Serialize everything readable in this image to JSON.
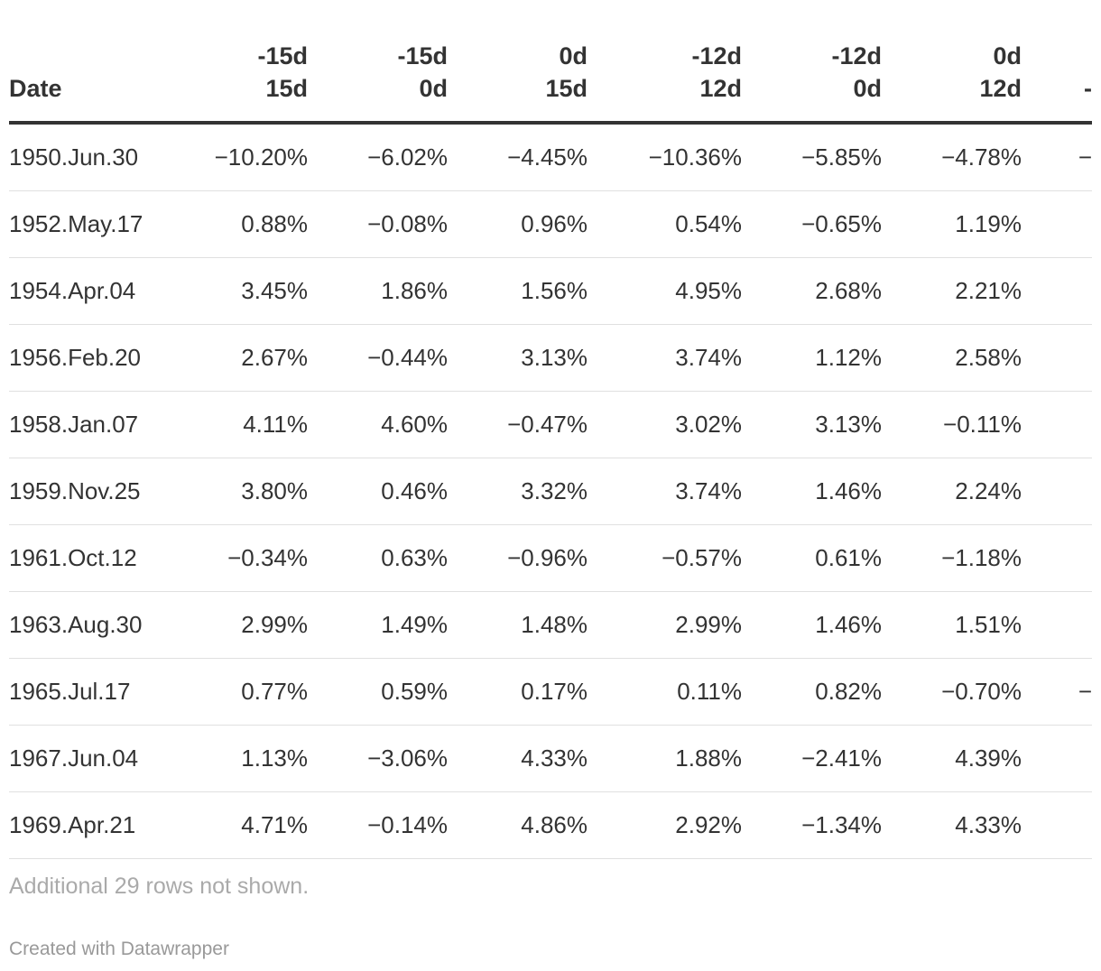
{
  "table": {
    "headers": [
      {
        "top": "",
        "bottom": "Date"
      },
      {
        "top": "-15d",
        "bottom": "15d"
      },
      {
        "top": "-15d",
        "bottom": "0d"
      },
      {
        "top": "0d",
        "bottom": "15d"
      },
      {
        "top": "-12d",
        "bottom": "12d"
      },
      {
        "top": "-12d",
        "bottom": "0d"
      },
      {
        "top": "0d",
        "bottom": "12d"
      },
      {
        "top": "",
        "bottom": "-"
      }
    ],
    "rows": [
      [
        "1950.Jun.30",
        "−10.20%",
        "−6.02%",
        "−4.45%",
        "−10.36%",
        "−5.85%",
        "−4.78%",
        "−"
      ],
      [
        "1952.May.17",
        "0.88%",
        "−0.08%",
        "0.96%",
        "0.54%",
        "−0.65%",
        "1.19%",
        ""
      ],
      [
        "1954.Apr.04",
        "3.45%",
        "1.86%",
        "1.56%",
        "4.95%",
        "2.68%",
        "2.21%",
        ""
      ],
      [
        "1956.Feb.20",
        "2.67%",
        "−0.44%",
        "3.13%",
        "3.74%",
        "1.12%",
        "2.58%",
        ""
      ],
      [
        "1958.Jan.07",
        "4.11%",
        "4.60%",
        "−0.47%",
        "3.02%",
        "3.13%",
        "−0.11%",
        ""
      ],
      [
        "1959.Nov.25",
        "3.80%",
        "0.46%",
        "3.32%",
        "3.74%",
        "1.46%",
        "2.24%",
        ""
      ],
      [
        "1961.Oct.12",
        "−0.34%",
        "0.63%",
        "−0.96%",
        "−0.57%",
        "0.61%",
        "−1.18%",
        ""
      ],
      [
        "1963.Aug.30",
        "2.99%",
        "1.49%",
        "1.48%",
        "2.99%",
        "1.46%",
        "1.51%",
        ""
      ],
      [
        "1965.Jul.17",
        "0.77%",
        "0.59%",
        "0.17%",
        "0.11%",
        "0.82%",
        "−0.70%",
        "−"
      ],
      [
        "1967.Jun.04",
        "1.13%",
        "−3.06%",
        "4.33%",
        "1.88%",
        "−2.41%",
        "4.39%",
        ""
      ],
      [
        "1969.Apr.21",
        "4.71%",
        "−0.14%",
        "4.86%",
        "2.92%",
        "−1.34%",
        "4.33%",
        ""
      ]
    ]
  },
  "footer": {
    "note": "Additional 29 rows not shown.",
    "credit": "Created with Datawrapper"
  }
}
